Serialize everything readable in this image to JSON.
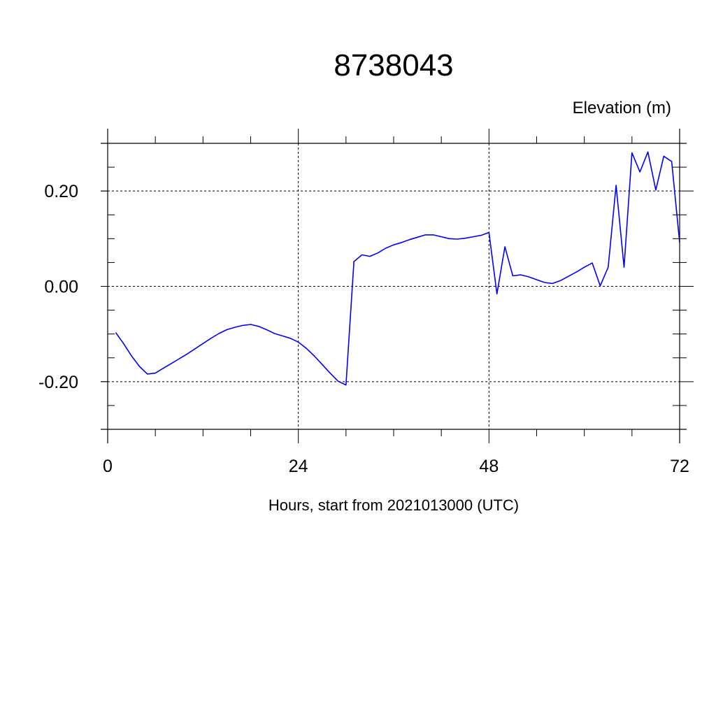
{
  "chart_data": {
    "type": "line",
    "title": "8738043",
    "ylabel": "Elevation (m)",
    "xlabel": "Hours, start from 2021013000 (UTC)",
    "xlim": [
      0,
      72
    ],
    "ylim": [
      -0.3,
      0.3
    ],
    "x_ticks": [
      0,
      24,
      48,
      72
    ],
    "x_tick_labels": [
      "0",
      "24",
      "48",
      "72"
    ],
    "y_ticks": [
      -0.2,
      0.0,
      0.2
    ],
    "y_tick_labels": [
      "-0.20",
      "0.00",
      "0.20"
    ],
    "grid": "dashed at major ticks",
    "series": [
      {
        "color": "#0000ff",
        "x": [
          1,
          2,
          3,
          4,
          5,
          6,
          7,
          8,
          9,
          10,
          11,
          12,
          13,
          14,
          15,
          16,
          17,
          18,
          19,
          20,
          21,
          22,
          23,
          24,
          25,
          26,
          27,
          28,
          29,
          30,
          31,
          32,
          33,
          34,
          35,
          36,
          37,
          38,
          39,
          40,
          41,
          42,
          43,
          44,
          45,
          46,
          47,
          48,
          49,
          50,
          51,
          52,
          53,
          54,
          55,
          56,
          57,
          58,
          59,
          60,
          61,
          62,
          63,
          64,
          65,
          66,
          67,
          68,
          69,
          70,
          71,
          72
        ],
        "values": [
          -0.097,
          -0.12,
          -0.146,
          -0.168,
          -0.184,
          -0.182,
          -0.172,
          -0.162,
          -0.152,
          -0.142,
          -0.131,
          -0.12,
          -0.109,
          -0.099,
          -0.091,
          -0.086,
          -0.082,
          -0.08,
          -0.084,
          -0.091,
          -0.099,
          -0.104,
          -0.109,
          -0.117,
          -0.13,
          -0.146,
          -0.164,
          -0.182,
          -0.199,
          -0.207,
          0.052,
          0.066,
          0.063,
          0.07,
          0.08,
          0.087,
          0.092,
          0.098,
          0.103,
          0.108,
          0.108,
          0.104,
          0.1,
          0.099,
          0.101,
          0.104,
          0.107,
          0.113,
          -0.016,
          0.083,
          0.022,
          0.024,
          0.02,
          0.014,
          0.008,
          0.006,
          0.012,
          0.021,
          0.03,
          0.04,
          0.049,
          0.001,
          0.04,
          0.212,
          0.04,
          0.28,
          0.24,
          0.282,
          0.202,
          0.273,
          0.262,
          0.092
        ]
      }
    ]
  }
}
